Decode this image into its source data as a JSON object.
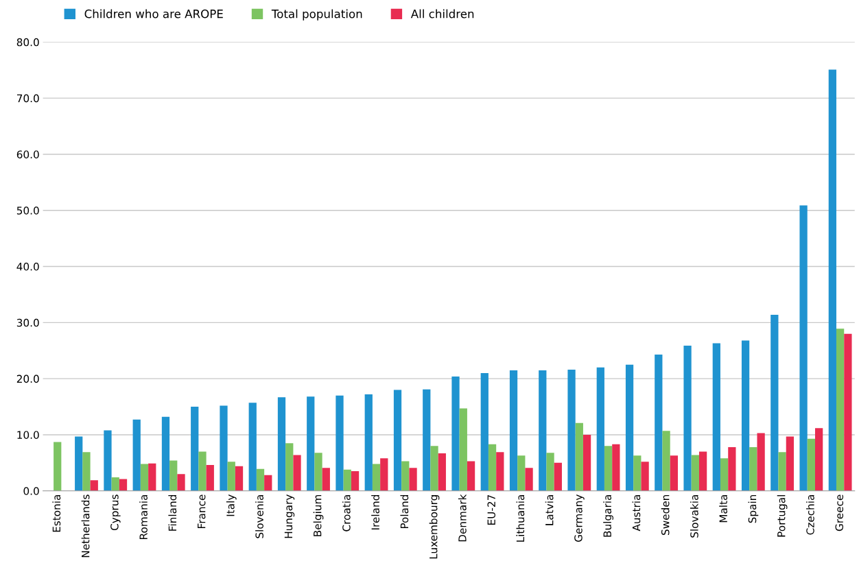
{
  "chart_data": {
    "type": "bar",
    "categories": [
      "Estonia",
      "Netherlands",
      "Cyprus",
      "Romania",
      "Finland",
      "France",
      "Italy",
      "Slovenia",
      "Hungary",
      "Belgium",
      "Croatia",
      "Ireland",
      "Poland",
      "Luxembourg",
      "Denmark",
      "EU-27",
      "Lithuania",
      "Latvia",
      "Germany",
      "Bulgaria",
      "Austria",
      "Sweden",
      "Slovakia",
      "Malta",
      "Spain",
      "Portugal",
      "Czechia",
      "Greece"
    ],
    "series": [
      {
        "name": "Children who are AROPE",
        "color": "#1f93d0",
        "values": [
          null,
          9.7,
          10.8,
          12.7,
          13.2,
          15.0,
          15.2,
          15.7,
          16.7,
          16.8,
          17.0,
          17.2,
          18.0,
          18.1,
          20.4,
          21.0,
          21.5,
          21.5,
          21.6,
          22.0,
          22.5,
          24.3,
          25.9,
          26.3,
          26.8,
          31.4,
          50.9,
          75.1
        ]
      },
      {
        "name": "Total population",
        "color": "#7dc462",
        "values": [
          8.7,
          6.9,
          2.4,
          4.8,
          5.4,
          7.0,
          5.2,
          3.9,
          8.5,
          6.8,
          3.8,
          4.8,
          5.3,
          8.0,
          14.7,
          8.3,
          6.3,
          6.8,
          12.1,
          8.0,
          6.3,
          10.7,
          6.4,
          5.8,
          7.8,
          6.9,
          9.3,
          28.9
        ]
      },
      {
        "name": "All children",
        "color": "#e82c51",
        "values": [
          null,
          1.9,
          2.1,
          4.9,
          3.0,
          4.6,
          4.4,
          2.8,
          6.4,
          4.1,
          3.5,
          5.8,
          4.1,
          6.7,
          5.3,
          6.9,
          4.1,
          5.0,
          10.0,
          8.3,
          5.2,
          6.3,
          7.0,
          7.8,
          10.3,
          9.7,
          11.2,
          28.0
        ]
      }
    ],
    "ylim": [
      0,
      80
    ],
    "yticks": [
      {
        "value": 0,
        "label": "0.0"
      },
      {
        "value": 10,
        "label": "10.0"
      },
      {
        "value": 20,
        "label": "20.0"
      },
      {
        "value": 30,
        "label": "30.0"
      },
      {
        "value": 40,
        "label": "40.0"
      },
      {
        "value": 50,
        "label": "50.0"
      },
      {
        "value": 60,
        "label": "60.0"
      },
      {
        "value": 70,
        "label": "70.0"
      },
      {
        "value": 80,
        "label": "80.0"
      }
    ],
    "grid": "y",
    "legend": "top left"
  }
}
